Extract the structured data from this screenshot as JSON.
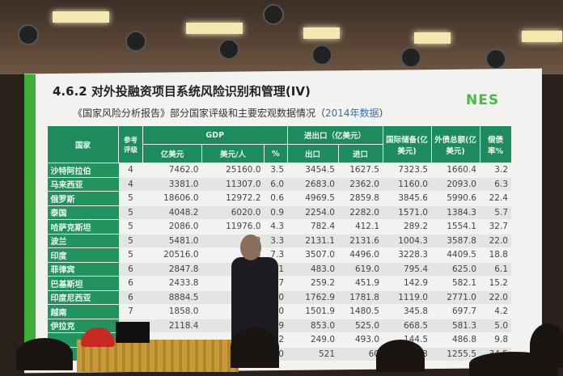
{
  "slide": {
    "title": "4.6.2  对外投融资项目系统风险识别和管理(IV)",
    "logo": "NES",
    "subtitle": "《国家风险分析报告》部分国家评级和主要宏观数据情况（",
    "subtitle_year": "2014年数据",
    "subtitle_end": "）",
    "colors": {
      "header_green": "#1e8b5f",
      "accent_green": "#3fae3a",
      "logo_green": "#4cb848"
    }
  },
  "table": {
    "headers": {
      "country": "国家",
      "rating": "参考评级",
      "gdp": "GDP",
      "trade": "进出口（亿美元）",
      "reserves": "国际储备(亿美元)",
      "debt": "外债总额(亿美元)",
      "debt_ratio": "偿债率%"
    },
    "subheaders": {
      "gdp_total": "亿美元",
      "gdp_per": "美元/人",
      "gdp_growth": "%",
      "export": "出口",
      "import": "进口"
    },
    "rows": [
      [
        "沙特阿拉伯",
        "4",
        "7462.0",
        "25160.0",
        "3.5",
        "3454.5",
        "1627.5",
        "7323.5",
        "1660.4",
        "3.2"
      ],
      [
        "马来西亚",
        "4",
        "3381.0",
        "11307.0",
        "6.0",
        "2683.0",
        "2362.0",
        "1160.0",
        "2093.0",
        "6.3"
      ],
      [
        "俄罗斯",
        "5",
        "18606.0",
        "12972.2",
        "0.6",
        "4969.5",
        "2859.8",
        "3845.6",
        "5990.6",
        "22.4"
      ],
      [
        "泰国",
        "5",
        "4048.2",
        "6020.0",
        "0.9",
        "2254.0",
        "2282.0",
        "1571.0",
        "1384.3",
        "5.7"
      ],
      [
        "哈萨克斯坦",
        "5",
        "2086.0",
        "11976.0",
        "4.3",
        "782.4",
        "412.1",
        "289.2",
        "1554.1",
        "32.7"
      ],
      [
        "波兰",
        "5",
        "5481.0",
        "142",
        "3.3",
        "2131.1",
        "2131.6",
        "1004.3",
        "3587.8",
        "22.0"
      ],
      [
        "印度",
        "5",
        "20516.0",
        "16",
        "7.3",
        "3507.0",
        "4496.0",
        "3228.3",
        "4409.5",
        "18.8"
      ],
      [
        "菲律宾",
        "6",
        "2847.8",
        "2",
        "6.1",
        "483.0",
        "619.0",
        "795.4",
        "625.0",
        "6.1"
      ],
      [
        "巴基斯坦",
        "6",
        "2433.8",
        "",
        "4.7",
        "259.2",
        "451.9",
        "142.9",
        "582.1",
        "15.2"
      ],
      [
        "印度尼西亚",
        "6",
        "8884.5",
        "3",
        "5.0",
        "1762.9",
        "1781.8",
        "1119.0",
        "2771.0",
        "22.0"
      ],
      [
        "越南",
        "7",
        "1858.0",
        "2",
        "6.0",
        "1501.9",
        "1480.5",
        "345.8",
        "697.7",
        "4.2"
      ],
      [
        "伊拉克",
        "",
        "2118.4",
        "6",
        "3.9",
        "853.0",
        "525.0",
        "668.5",
        "581.3",
        "5.0"
      ],
      [
        "",
        "",
        "",
        "",
        "2.2",
        "249.0",
        "493.0",
        "144.5",
        "486.8",
        "9.8"
      ],
      [
        "",
        "",
        "",
        "",
        "-7.0",
        "521",
        "60",
        "75.3",
        "1255.5",
        "34.5"
      ]
    ]
  }
}
